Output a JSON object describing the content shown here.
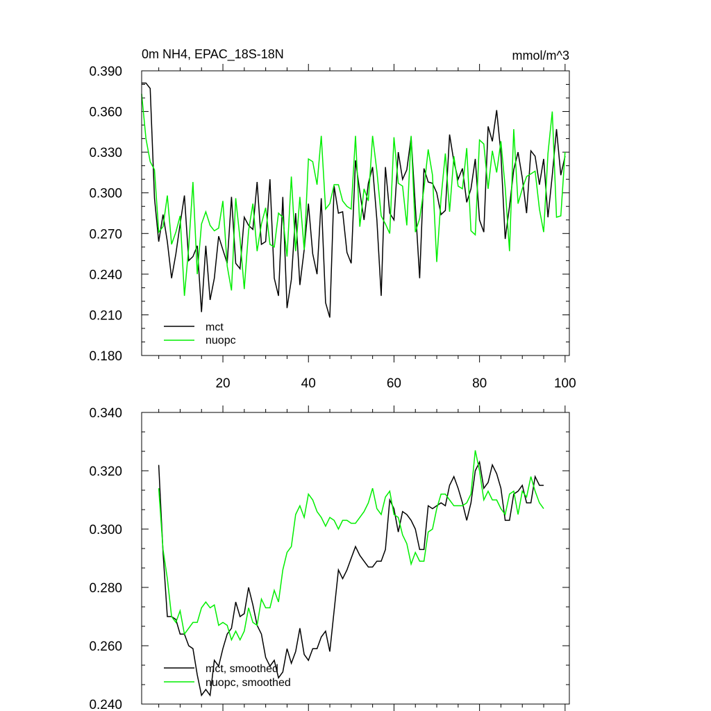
{
  "chart_data": [
    {
      "type": "line",
      "title": "0m NH4, EPAC_18S-18N",
      "units": "mmol/m^3",
      "xlim": [
        1,
        101
      ],
      "ylim": [
        0.18,
        0.39
      ],
      "x_ticks": [
        20,
        40,
        60,
        80,
        100
      ],
      "y_ticks": [
        0.18,
        0.21,
        0.24,
        0.27,
        0.3,
        0.33,
        0.36,
        0.39
      ],
      "x_tick_labels": [
        "20",
        "40",
        "60",
        "80",
        "100"
      ],
      "y_tick_labels": [
        "0.180",
        "0.210",
        "0.240",
        "0.270",
        "0.300",
        "0.330",
        "0.360",
        "0.390"
      ],
      "legend_position": "bottom-left",
      "series": [
        {
          "name": "mct",
          "color": "#000000",
          "values": [
            0.381,
            0.381,
            0.377,
            0.296,
            0.264,
            0.284,
            0.264,
            0.237,
            0.255,
            0.277,
            0.298,
            0.25,
            0.253,
            0.261,
            0.212,
            0.261,
            0.221,
            0.237,
            0.268,
            0.258,
            0.248,
            0.297,
            0.248,
            0.244,
            0.282,
            0.276,
            0.273,
            0.308,
            0.262,
            0.264,
            0.31,
            0.237,
            0.224,
            0.297,
            0.215,
            0.236,
            0.285,
            0.232,
            0.258,
            0.292,
            0.255,
            0.24,
            0.296,
            0.219,
            0.208,
            0.305,
            0.285,
            0.286,
            0.256,
            0.248,
            0.324,
            0.301,
            0.28,
            0.307,
            0.319,
            0.28,
            0.224,
            0.319,
            0.285,
            0.28,
            0.33,
            0.31,
            0.317,
            0.341,
            0.29,
            0.237,
            0.318,
            0.308,
            0.307,
            0.3,
            0.284,
            0.287,
            0.343,
            0.323,
            0.31,
            0.318,
            0.293,
            0.303,
            0.325,
            0.28,
            0.271,
            0.349,
            0.338,
            0.361,
            0.329,
            0.266,
            0.29,
            0.317,
            0.33,
            0.311,
            0.285,
            0.331,
            0.327,
            0.306,
            0.325,
            0.282,
            0.313,
            0.347,
            0.313,
            0.327
          ]
        },
        {
          "name": "nuopc",
          "color": "#00ee00",
          "values": [
            0.373,
            0.34,
            0.323,
            0.317,
            0.271,
            0.275,
            0.298,
            0.262,
            0.271,
            0.283,
            0.224,
            0.26,
            0.308,
            0.24,
            0.277,
            0.286,
            0.276,
            0.272,
            0.274,
            0.294,
            0.246,
            0.228,
            0.296,
            0.266,
            0.229,
            0.272,
            0.292,
            0.257,
            0.277,
            0.289,
            0.262,
            0.26,
            0.285,
            0.282,
            0.253,
            0.312,
            0.257,
            0.297,
            0.258,
            0.325,
            0.323,
            0.306,
            0.342,
            0.288,
            0.292,
            0.306,
            0.306,
            0.294,
            0.29,
            0.288,
            0.342,
            0.275,
            0.303,
            0.294,
            0.342,
            0.316,
            0.283,
            0.277,
            0.27,
            0.341,
            0.307,
            0.305,
            0.276,
            0.342,
            0.271,
            0.281,
            0.303,
            0.332,
            0.313,
            0.249,
            0.296,
            0.329,
            0.286,
            0.327,
            0.305,
            0.303,
            0.333,
            0.272,
            0.269,
            0.339,
            0.336,
            0.303,
            0.331,
            0.315,
            0.338,
            0.304,
            0.257,
            0.347,
            0.292,
            0.303,
            0.312,
            0.314,
            0.316,
            0.288,
            0.271,
            0.329,
            0.36,
            0.282,
            0.283,
            0.33
          ]
        }
      ]
    },
    {
      "type": "line",
      "xlim": [
        1,
        101
      ],
      "ylim": [
        0.24,
        0.34
      ],
      "x_ticks": [
        20,
        40,
        60,
        80,
        100
      ],
      "y_ticks": [
        0.24,
        0.26,
        0.28,
        0.3,
        0.32,
        0.34
      ],
      "y_tick_labels": [
        "0.240",
        "0.260",
        "0.280",
        "0.300",
        "0.320",
        "0.340"
      ],
      "legend_position": "bottom-left",
      "series": [
        {
          "name": "mct, smoothed",
          "color": "#000000",
          "x_start": 5,
          "values": [
            0.322,
            0.292,
            0.27,
            0.27,
            0.269,
            0.264,
            0.264,
            0.26,
            0.259,
            0.25,
            0.243,
            0.245,
            0.243,
            0.255,
            0.253,
            0.259,
            0.264,
            0.266,
            0.275,
            0.27,
            0.271,
            0.28,
            0.274,
            0.267,
            0.264,
            0.256,
            0.253,
            0.255,
            0.249,
            0.251,
            0.259,
            0.254,
            0.258,
            0.266,
            0.257,
            0.255,
            0.259,
            0.259,
            0.263,
            0.265,
            0.258,
            0.272,
            0.286,
            0.283,
            0.286,
            0.29,
            0.294,
            0.291,
            0.289,
            0.287,
            0.287,
            0.289,
            0.289,
            0.293,
            0.31,
            0.307,
            0.299,
            0.306,
            0.305,
            0.303,
            0.3,
            0.293,
            0.293,
            0.308,
            0.307,
            0.308,
            0.309,
            0.308,
            0.315,
            0.318,
            0.314,
            0.309,
            0.303,
            0.309,
            0.32,
            0.323,
            0.314,
            0.316,
            0.322,
            0.319,
            0.314,
            0.303,
            0.303,
            0.312,
            0.313,
            0.315,
            0.309,
            0.309,
            0.318,
            0.315,
            0.315
          ]
        },
        {
          "name": "nuopc, smoothed",
          "color": "#00ee00",
          "x_start": 5,
          "values": [
            0.314,
            0.293,
            0.283,
            0.27,
            0.268,
            0.272,
            0.264,
            0.266,
            0.268,
            0.268,
            0.273,
            0.275,
            0.273,
            0.274,
            0.267,
            0.268,
            0.267,
            0.262,
            0.265,
            0.262,
            0.265,
            0.273,
            0.268,
            0.267,
            0.276,
            0.273,
            0.273,
            0.279,
            0.275,
            0.286,
            0.292,
            0.294,
            0.305,
            0.308,
            0.304,
            0.312,
            0.31,
            0.306,
            0.304,
            0.301,
            0.304,
            0.303,
            0.3,
            0.303,
            0.303,
            0.302,
            0.302,
            0.304,
            0.306,
            0.309,
            0.314,
            0.307,
            0.305,
            0.311,
            0.313,
            0.305,
            0.304,
            0.298,
            0.295,
            0.288,
            0.292,
            0.289,
            0.289,
            0.299,
            0.3,
            0.307,
            0.312,
            0.312,
            0.31,
            0.308,
            0.308,
            0.308,
            0.309,
            0.312,
            0.327,
            0.32,
            0.31,
            0.313,
            0.31,
            0.31,
            0.307,
            0.305,
            0.312,
            0.313,
            0.305,
            0.313,
            0.311,
            0.318,
            0.313,
            0.309,
            0.307
          ]
        }
      ]
    }
  ]
}
